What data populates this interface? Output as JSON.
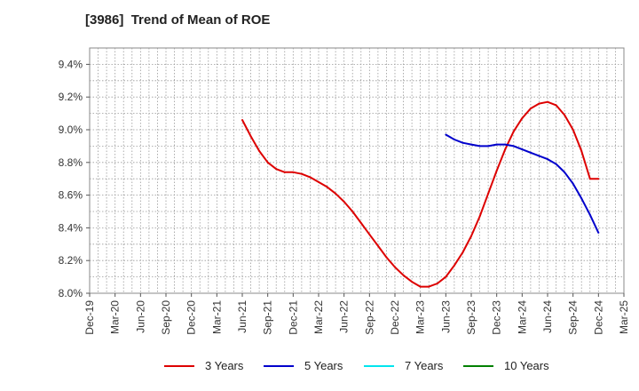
{
  "chart_data": {
    "type": "line",
    "title": "[3986]  Trend of Mean of ROE",
    "xlabel": "",
    "ylabel": "",
    "x_tick_labels": [
      "Dec-19",
      "Mar-20",
      "Jun-20",
      "Sep-20",
      "Dec-20",
      "Mar-21",
      "Jun-21",
      "Sep-21",
      "Dec-21",
      "Mar-22",
      "Jun-22",
      "Sep-22",
      "Dec-22",
      "Mar-23",
      "Jun-23",
      "Sep-23",
      "Dec-23",
      "Mar-24",
      "Jun-24",
      "Sep-24",
      "Dec-24",
      "Mar-25"
    ],
    "y_tick_labels": [
      "8.0%",
      "8.2%",
      "8.4%",
      "8.6%",
      "8.8%",
      "9.0%",
      "9.2%",
      "9.4%"
    ],
    "ylim": [
      8.0,
      9.5
    ],
    "grid": true,
    "legend_position": "bottom",
    "series": [
      {
        "name": "3 Years",
        "color": "#dd0000",
        "x": [
          "Jun-21",
          "Jul-21",
          "Aug-21",
          "Sep-21",
          "Oct-21",
          "Nov-21",
          "Dec-21",
          "Jan-22",
          "Feb-22",
          "Mar-22",
          "Apr-22",
          "May-22",
          "Jun-22",
          "Jul-22",
          "Aug-22",
          "Sep-22",
          "Oct-22",
          "Nov-22",
          "Dec-22",
          "Jan-23",
          "Feb-23",
          "Mar-23",
          "Apr-23",
          "May-23",
          "Jun-23",
          "Jul-23",
          "Aug-23",
          "Sep-23",
          "Oct-23",
          "Nov-23",
          "Dec-23",
          "Jan-24",
          "Feb-24",
          "Mar-24",
          "Apr-24",
          "May-24",
          "Jun-24",
          "Jul-24",
          "Aug-24",
          "Sep-24",
          "Oct-24",
          "Nov-24",
          "Dec-24"
        ],
        "values": [
          9.06,
          8.96,
          8.87,
          8.8,
          8.76,
          8.74,
          8.74,
          8.73,
          8.71,
          8.68,
          8.65,
          8.61,
          8.56,
          8.5,
          8.43,
          8.36,
          8.29,
          8.22,
          8.16,
          8.11,
          8.07,
          8.04,
          8.04,
          8.06,
          8.1,
          8.17,
          8.25,
          8.35,
          8.47,
          8.61,
          8.75,
          8.88,
          8.99,
          9.07,
          9.13,
          9.16,
          9.17,
          9.15,
          9.09,
          9.0,
          8.87,
          8.7,
          8.7
        ]
      },
      {
        "name": "5 Years",
        "color": "#0000cc",
        "x": [
          "Jun-23",
          "Jul-23",
          "Aug-23",
          "Sep-23",
          "Oct-23",
          "Nov-23",
          "Dec-23",
          "Jan-24",
          "Feb-24",
          "Mar-24",
          "Apr-24",
          "May-24",
          "Jun-24",
          "Jul-24",
          "Aug-24",
          "Sep-24",
          "Oct-24",
          "Nov-24",
          "Dec-24"
        ],
        "values": [
          8.97,
          8.94,
          8.92,
          8.91,
          8.9,
          8.9,
          8.91,
          8.91,
          8.9,
          8.88,
          8.86,
          8.84,
          8.82,
          8.79,
          8.74,
          8.67,
          8.58,
          8.48,
          8.37
        ]
      },
      {
        "name": "7 Years",
        "color": "#00e5ee",
        "x": [],
        "values": []
      },
      {
        "name": "10 Years",
        "color": "#008000",
        "x": [],
        "values": []
      }
    ]
  }
}
